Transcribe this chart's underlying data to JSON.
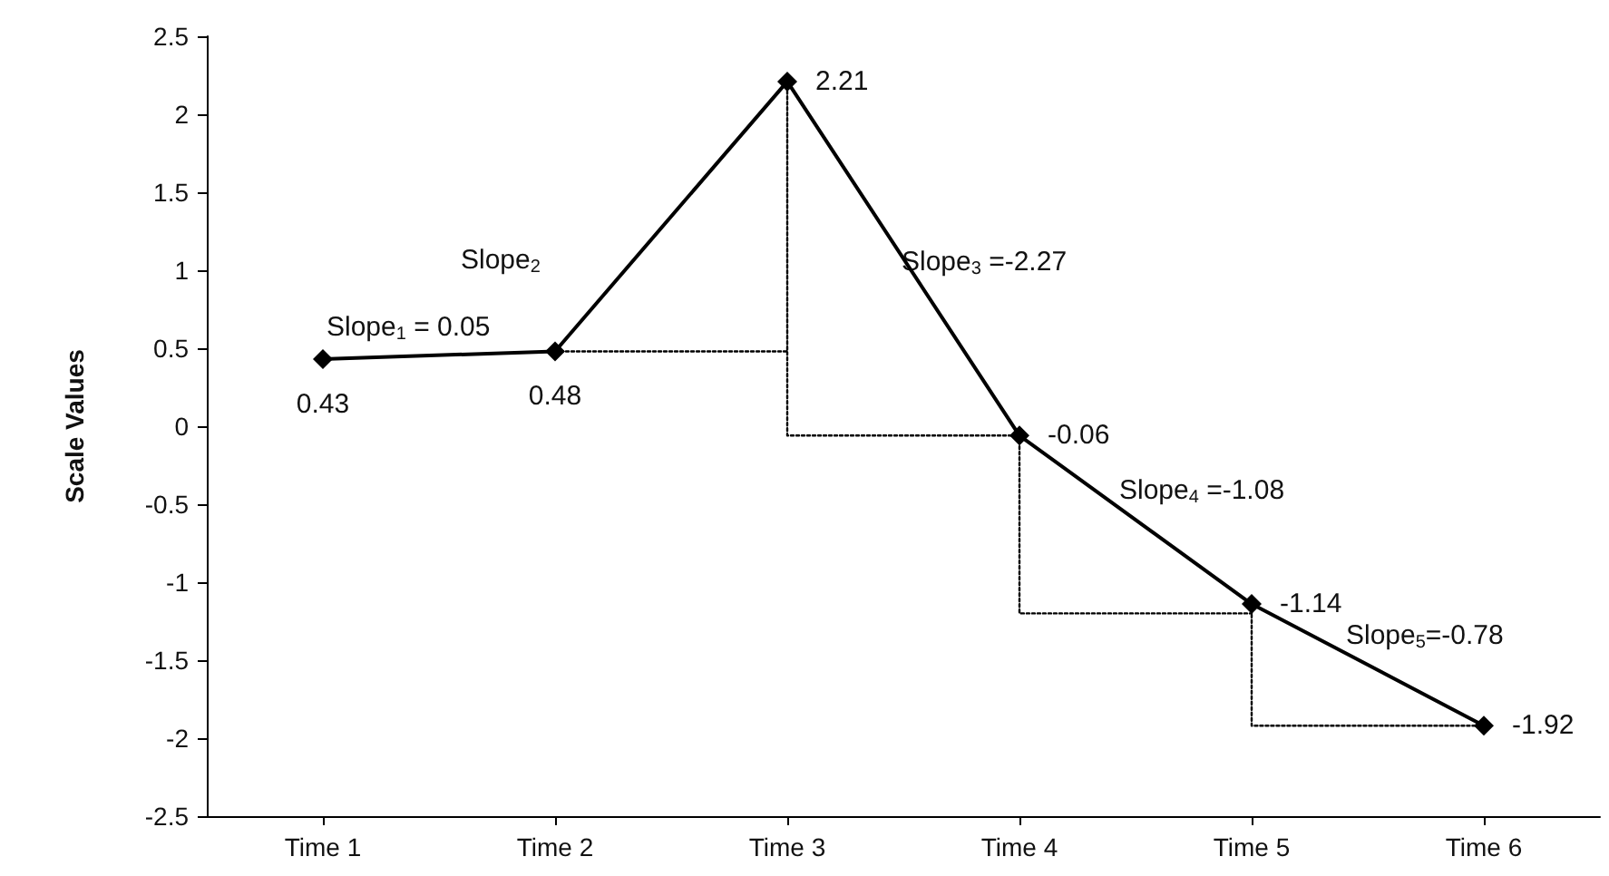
{
  "chart_data": {
    "type": "line",
    "ylabel": "Scale Values",
    "categories": [
      "Time 1",
      "Time 2",
      "Time 3",
      "Time 4",
      "Time 5",
      "Time 6"
    ],
    "series": [
      {
        "color": "#000000",
        "line_style": "solid",
        "marker": "diamond",
        "data_labels": true,
        "values": [
          0.43,
          0.48,
          2.21,
          -0.06,
          -1.14,
          -1.92
        ]
      },
      {
        "color": "#000000",
        "line_style": "dotted",
        "marker": "none",
        "x": [
          "Time 2",
          "Time 3",
          "Time 3",
          "Time 3",
          "Time 4",
          "Time 4",
          "Time 5",
          "Time 5",
          "Time 5",
          "Time 6"
        ],
        "values": [
          0.48,
          0.48,
          2.21,
          -0.06,
          -0.06,
          -1.2,
          -1.2,
          -1.14,
          -1.92,
          -1.92
        ]
      }
    ],
    "ylim": [
      -2.5,
      2.5
    ],
    "yticks": [
      -2.5,
      -2,
      -1.5,
      -1,
      -0.5,
      0,
      0.5,
      1,
      1.5,
      2,
      2.5
    ],
    "grid": false,
    "annotations": [
      "Slope$_{1}$ = 0.05",
      "Slope$_{2}$",
      "Slope$_{3}$ =-2.27",
      "Slope$_{4}$ =-1.08",
      "Slope$_{5}$=-0.78"
    ]
  }
}
